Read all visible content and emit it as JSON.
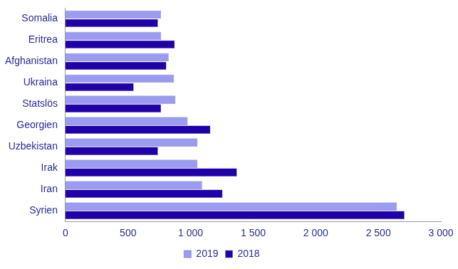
{
  "chart_data": {
    "type": "bar",
    "orientation": "horizontal",
    "categories": [
      "Somalia",
      "Eritrea",
      "Afghanistan",
      "Ukraina",
      "Statslös",
      "Georgien",
      "Uzbekistan",
      "Irak",
      "Iran",
      "Syrien"
    ],
    "series": [
      {
        "name": "2019",
        "color": "#9b9bef",
        "values": [
          764,
          764,
          824,
          867,
          879,
          976,
          1055,
          1055,
          1091,
          2648
        ]
      },
      {
        "name": "2018",
        "color": "#2000a8",
        "values": [
          739,
          873,
          806,
          545,
          764,
          1158,
          739,
          1370,
          1255,
          2709
        ]
      }
    ],
    "xlim": [
      0,
      3000
    ],
    "xticks": [
      0,
      500,
      {
        "value": 1000,
        "label": "1 000"
      },
      {
        "value": 1500,
        "label": "1 500"
      },
      {
        "value": 2000,
        "label": "2 000"
      },
      {
        "value": 2500,
        "label": "2 500"
      },
      {
        "value": 3000,
        "label": "3 000"
      }
    ],
    "grid": false,
    "legend": "bottom"
  }
}
